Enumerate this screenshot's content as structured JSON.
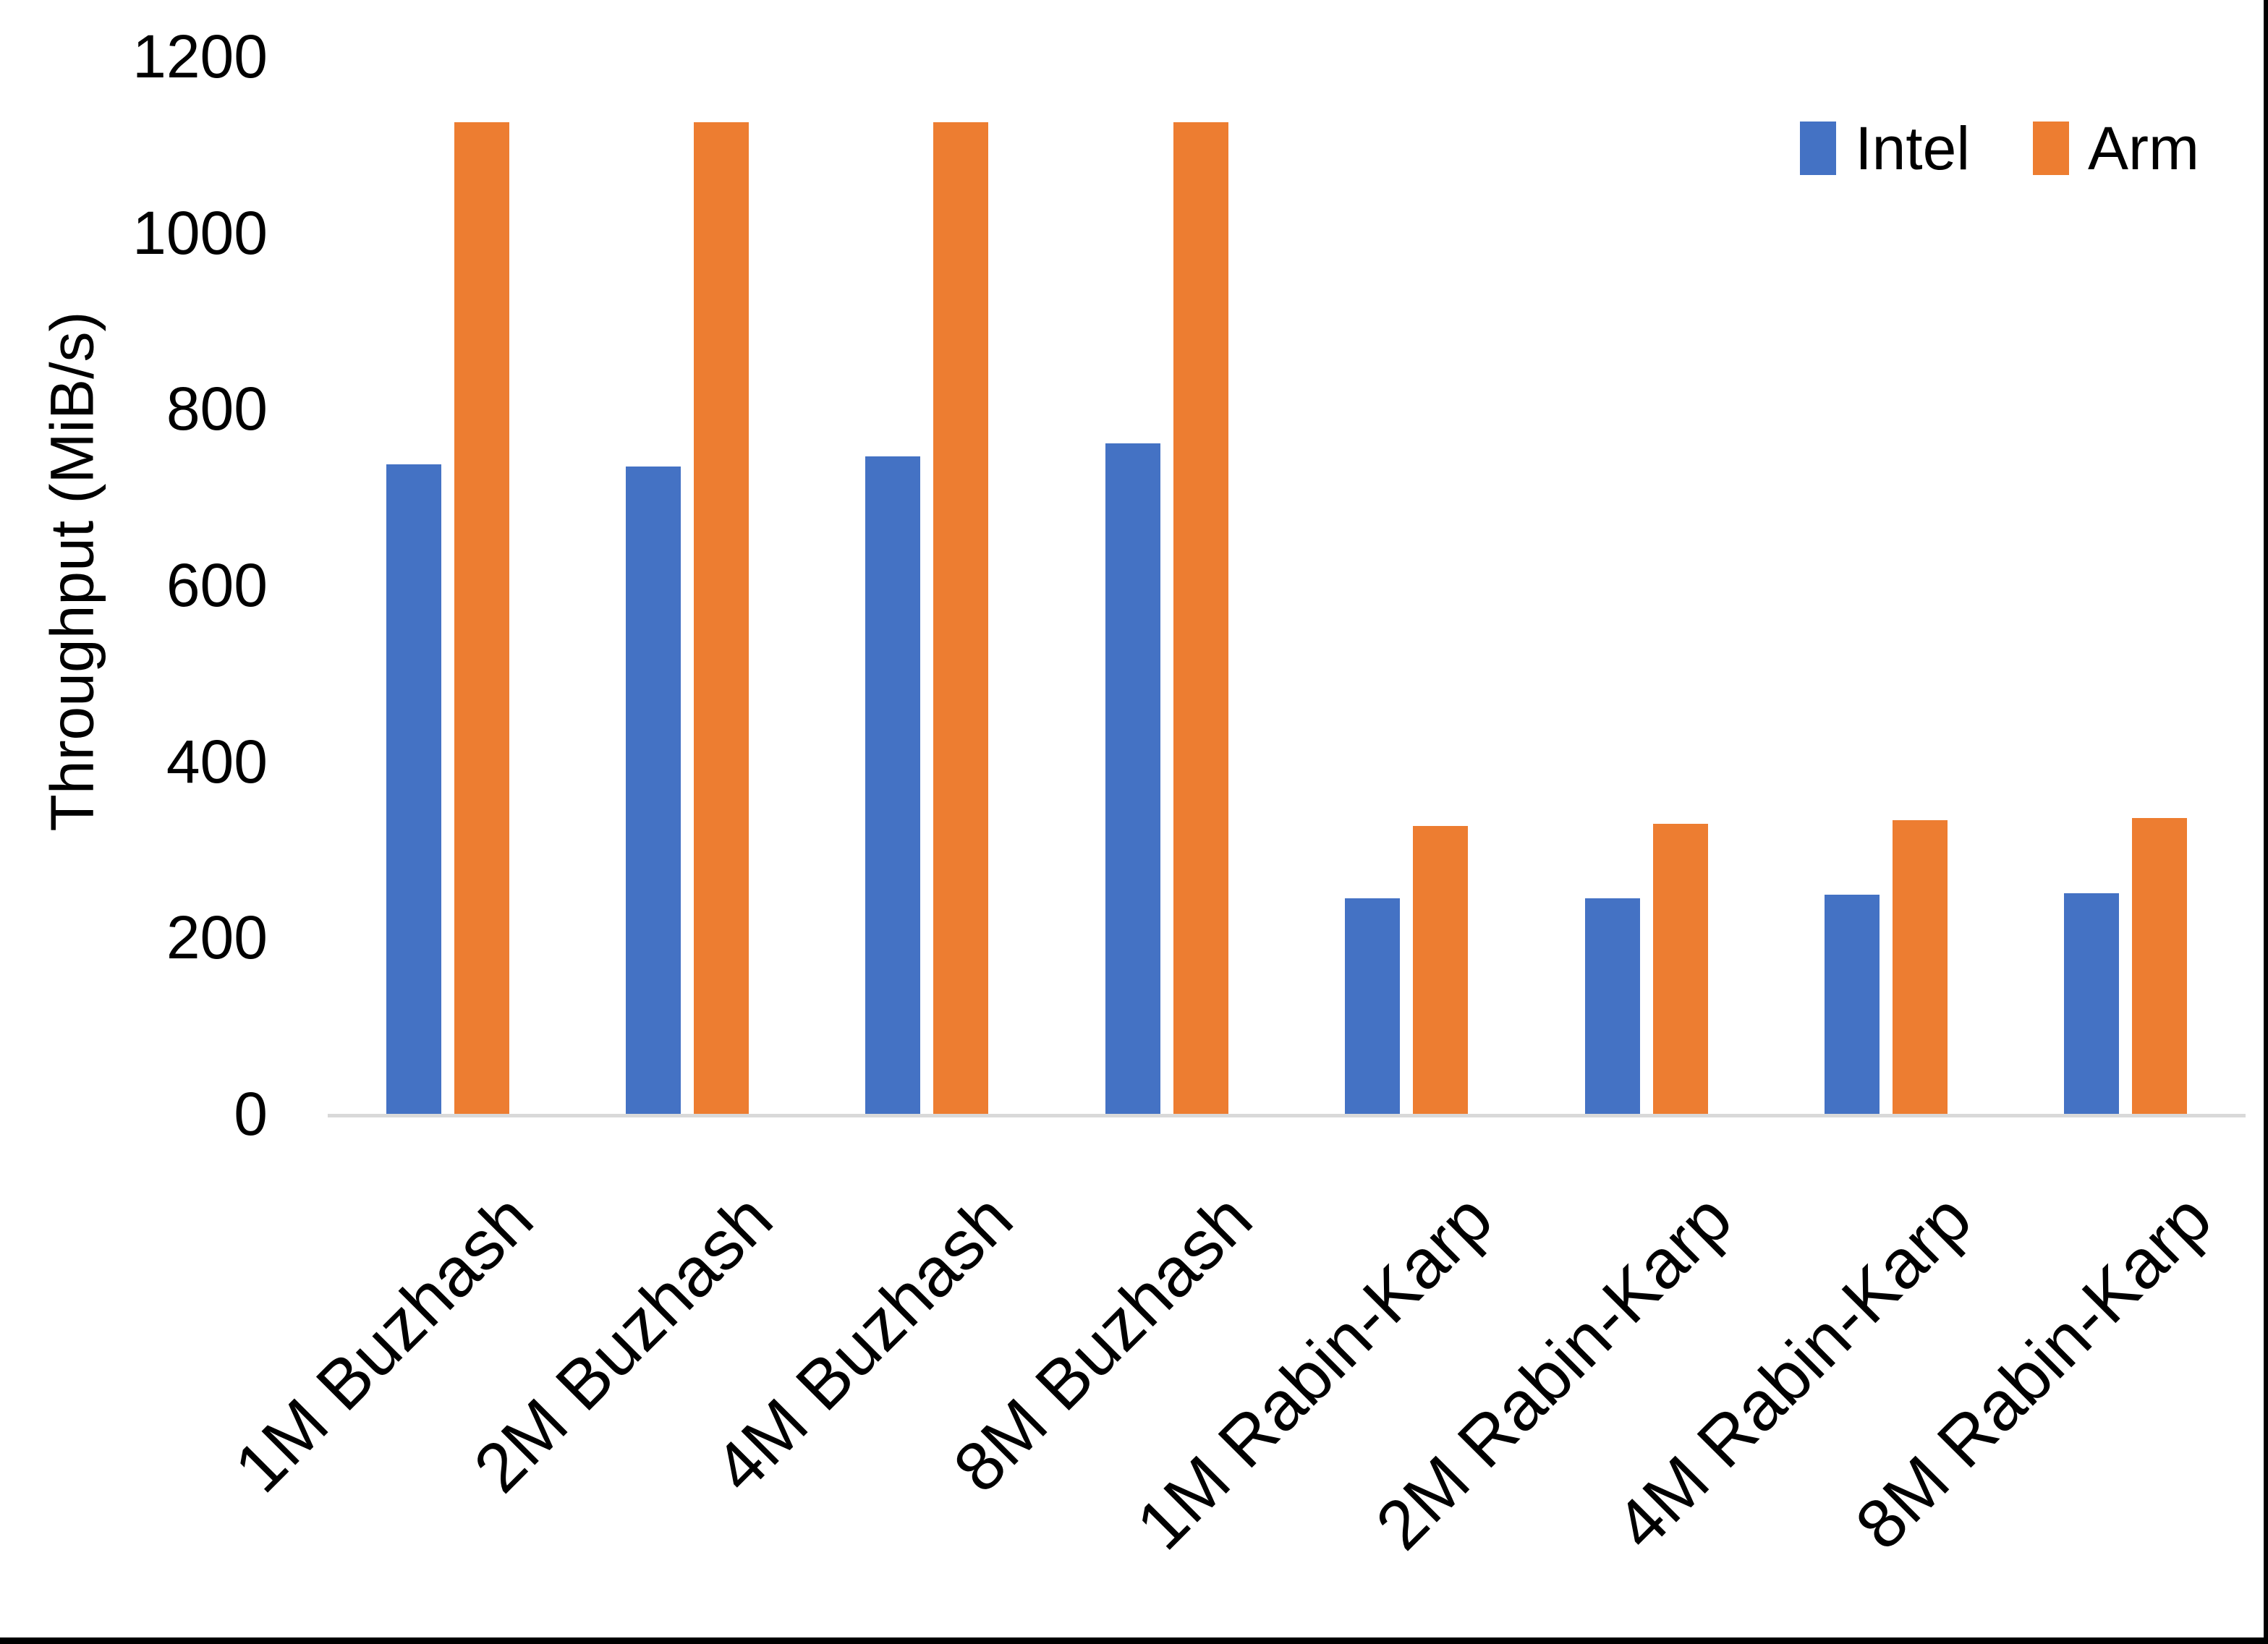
{
  "chart_data": {
    "type": "bar",
    "title": "",
    "xlabel": "",
    "ylabel": "Throughput (MiB/s)",
    "ylim": [
      0,
      1200
    ],
    "yticks": [
      0,
      200,
      400,
      600,
      800,
      1000,
      1200
    ],
    "grid": false,
    "legend_position": "top-right",
    "categories": [
      "1M Buzhash",
      "2M Buzhash",
      "4M Buzhash",
      "8M Buzhash",
      "1M Rabin-Karp",
      "2M Rabin-Karp",
      "4M Rabin-Karp",
      "8M Rabin-Karp"
    ],
    "series": [
      {
        "name": "Intel",
        "color": "#4472C4",
        "values": [
          737,
          735,
          746,
          761,
          245,
          245,
          249,
          250
        ]
      },
      {
        "name": "Arm",
        "color": "#ED7D31",
        "values": [
          1125,
          1125,
          1125,
          1125,
          327,
          329,
          333,
          336
        ]
      }
    ],
    "axis_line_color": "#d9d9d9",
    "text_color": "#000000"
  }
}
